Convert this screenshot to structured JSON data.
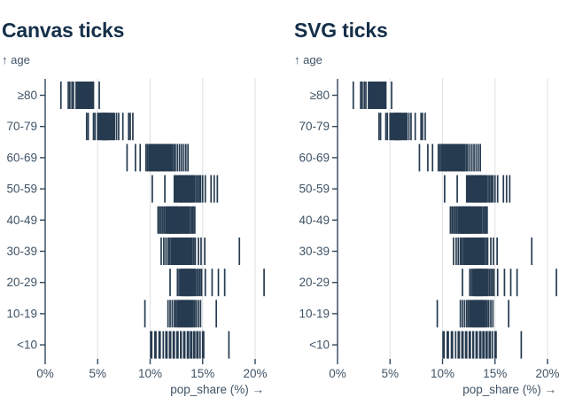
{
  "charts": [
    {
      "title": "Canvas ticks",
      "renderer": "canvas"
    },
    {
      "title": "SVG ticks",
      "renderer": "svg"
    }
  ],
  "chart_data": {
    "type": "tick",
    "x": {
      "label": "pop_share (%) →",
      "tick_labels": [
        "0%",
        "5%",
        "10%",
        "15%",
        "20%"
      ],
      "tick_values": [
        0,
        5,
        10,
        15,
        20
      ],
      "range": [
        0,
        21
      ],
      "grid": true
    },
    "y": {
      "label": "↑ age",
      "categories": [
        "≥80",
        "70-79",
        "60-69",
        "50-59",
        "40-49",
        "30-39",
        "20-29",
        "10-19",
        "<10"
      ]
    },
    "series": [
      {
        "category": "≥80",
        "values": [
          1.5,
          2.2,
          2.35,
          2.55,
          2.7,
          2.95,
          3.05,
          3.1,
          3.15,
          3.2,
          3.25,
          3.3,
          3.35,
          3.4,
          3.45,
          3.5,
          3.55,
          3.6,
          3.65,
          3.7,
          3.75,
          3.8,
          3.85,
          3.9,
          3.95,
          4.0,
          4.05,
          4.1,
          4.15,
          4.2,
          4.25,
          4.3,
          4.35,
          4.4,
          4.45,
          4.5,
          4.6,
          5.15
        ]
      },
      {
        "category": "70-79",
        "values": [
          3.95,
          4.1,
          4.6,
          4.75,
          5.0,
          5.1,
          5.2,
          5.3,
          5.4,
          5.45,
          5.5,
          5.55,
          5.6,
          5.65,
          5.7,
          5.75,
          5.8,
          5.85,
          5.9,
          5.95,
          6.0,
          6.1,
          6.2,
          6.3,
          6.4,
          6.5,
          6.6,
          6.8,
          7.0,
          7.4,
          7.95,
          8.1,
          8.35
        ]
      },
      {
        "category": "60-69",
        "values": [
          7.8,
          8.6,
          9.05,
          9.6,
          9.75,
          9.9,
          10.0,
          10.1,
          10.2,
          10.3,
          10.4,
          10.5,
          10.6,
          10.7,
          10.8,
          10.9,
          11.0,
          11.1,
          11.2,
          11.3,
          11.4,
          11.5,
          11.6,
          11.7,
          11.8,
          11.9,
          12.0,
          12.1,
          12.25,
          12.4,
          12.6,
          12.8,
          13.0,
          13.2,
          13.4,
          13.6
        ]
      },
      {
        "category": "50-59",
        "values": [
          10.2,
          11.4,
          12.3,
          12.4,
          12.5,
          12.6,
          12.7,
          12.8,
          12.85,
          12.9,
          13.0,
          13.05,
          13.1,
          13.2,
          13.3,
          13.35,
          13.4,
          13.5,
          13.6,
          13.65,
          13.7,
          13.8,
          13.9,
          14.0,
          14.1,
          14.2,
          14.35,
          14.5,
          14.65,
          14.8,
          15.0,
          15.25,
          15.8,
          16.1,
          16.4
        ]
      },
      {
        "category": "40-49",
        "values": [
          10.75,
          10.9,
          11.05,
          11.2,
          11.35,
          11.5,
          11.6,
          11.7,
          11.8,
          11.9,
          11.95,
          12.0,
          12.1,
          12.2,
          12.25,
          12.3,
          12.4,
          12.5,
          12.55,
          12.6,
          12.7,
          12.8,
          12.9,
          13.0,
          13.1,
          13.2,
          13.3,
          13.4,
          13.5,
          13.6,
          13.7,
          13.85,
          14.0,
          14.1,
          14.25
        ]
      },
      {
        "category": "30-39",
        "values": [
          11.05,
          11.3,
          11.5,
          11.7,
          11.85,
          12.0,
          12.1,
          12.2,
          12.3,
          12.4,
          12.5,
          12.55,
          12.6,
          12.7,
          12.8,
          12.9,
          13.0,
          13.1,
          13.2,
          13.3,
          13.4,
          13.5,
          13.6,
          13.7,
          13.8,
          13.9,
          14.0,
          14.15,
          14.3,
          14.6,
          14.85,
          15.2,
          18.5
        ]
      },
      {
        "category": "20-29",
        "values": [
          11.9,
          12.6,
          12.75,
          12.9,
          13.0,
          13.1,
          13.15,
          13.2,
          13.3,
          13.35,
          13.4,
          13.5,
          13.55,
          13.6,
          13.7,
          13.75,
          13.8,
          13.9,
          14.0,
          14.1,
          14.2,
          14.3,
          14.45,
          14.6,
          14.75,
          14.9,
          15.25,
          15.9,
          16.5,
          17.1,
          20.85
        ]
      },
      {
        "category": "10-19",
        "values": [
          9.5,
          11.7,
          11.9,
          12.1,
          12.3,
          12.45,
          12.6,
          12.7,
          12.8,
          12.9,
          13.0,
          13.05,
          13.1,
          13.2,
          13.3,
          13.35,
          13.4,
          13.5,
          13.6,
          13.65,
          13.7,
          13.8,
          13.9,
          14.0,
          14.1,
          14.25,
          14.4,
          14.6,
          14.8,
          16.3
        ]
      },
      {
        "category": "<10",
        "values": [
          10.05,
          10.15,
          10.45,
          10.55,
          10.85,
          10.95,
          11.25,
          11.5,
          11.6,
          11.85,
          11.95,
          12.2,
          12.3,
          12.55,
          12.65,
          12.9,
          12.95,
          13.2,
          13.3,
          13.55,
          13.6,
          13.65,
          13.85,
          13.95,
          14.15,
          14.25,
          14.45,
          14.55,
          14.75,
          15.0,
          15.1,
          17.5
        ]
      }
    ]
  },
  "colors": {
    "tick": "#263b50",
    "title": "#142f49",
    "label": "#3f5366",
    "axis": "#31465b",
    "grid": "#e3e4e7",
    "background": "#ffffff"
  }
}
